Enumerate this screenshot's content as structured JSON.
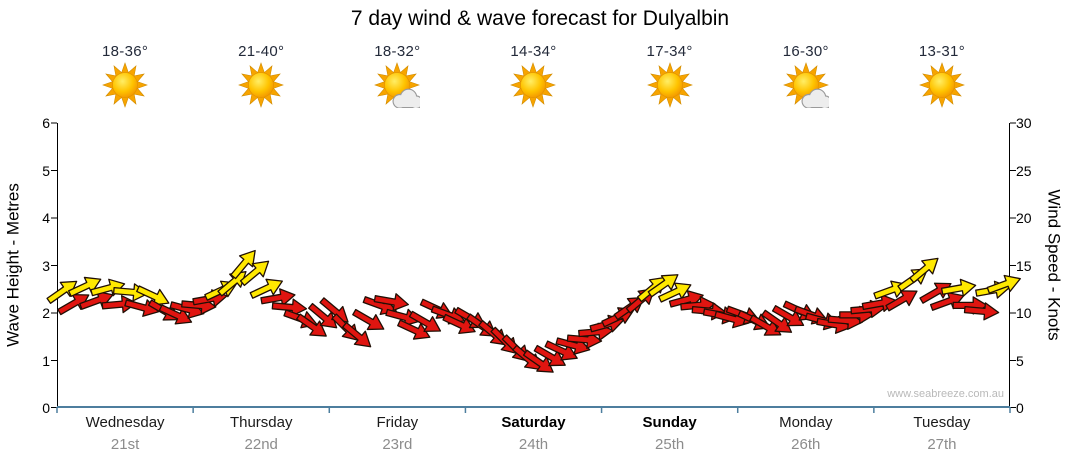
{
  "title": "7 day wind & wave forecast for Dulyalbin",
  "watermark": "www.seabreeze.com.au",
  "colors": {
    "arrow_red": "#e01510",
    "arrow_yellow": "#ffe800",
    "arrow_outline": "#200f05",
    "axis_line": "#000000",
    "baseline": "#4d7e9e",
    "temp_text": "#232a3a",
    "day_text": "#1a1a1a",
    "date_text": "#8c8c8c"
  },
  "forecast": {
    "days": [
      {
        "name": "Wednesday",
        "date": "21st",
        "temps": "18-36°",
        "icon": "sunny",
        "weekend": false
      },
      {
        "name": "Thursday",
        "date": "22nd",
        "temps": "21-40°",
        "icon": "sunny",
        "weekend": false
      },
      {
        "name": "Friday",
        "date": "23rd",
        "temps": "18-32°",
        "icon": "partly-cloudy",
        "weekend": false
      },
      {
        "name": "Saturday",
        "date": "24th",
        "temps": "14-34°",
        "icon": "sunny",
        "weekend": true
      },
      {
        "name": "Sunday",
        "date": "25th",
        "temps": "17-34°",
        "icon": "sunny",
        "weekend": true
      },
      {
        "name": "Monday",
        "date": "26th",
        "temps": "16-30°",
        "icon": "partly-cloudy",
        "weekend": false
      },
      {
        "name": "Tuesday",
        "date": "27th",
        "temps": "13-31°",
        "icon": "sunny",
        "weekend": false
      }
    ]
  },
  "chart_data": {
    "type": "wind-arrow-timeseries",
    "title": "7 day wind & wave forecast for Dulyalbin",
    "categories": [
      "Wednesday 21st",
      "Thursday 22nd",
      "Friday 23rd",
      "Saturday 24th",
      "Sunday 25th",
      "Monday 26th",
      "Tuesday 27th"
    ],
    "left_axis": {
      "label": "Wave Height - Metres",
      "min": 0,
      "max": 6,
      "ticks": [
        0,
        1,
        2,
        3,
        4,
        5,
        6
      ]
    },
    "right_axis": {
      "label": "Wind Speed - Knots",
      "min": 0,
      "max": 30,
      "ticks": [
        0,
        5,
        10,
        15,
        20,
        25,
        30
      ]
    },
    "grid": false,
    "arrow_format": [
      "day_offset",
      "knots",
      "direction_deg",
      "color(y=yellow,r=red)"
    ],
    "arrows": [
      [
        0.042,
        12.3,
        -35,
        "y"
      ],
      [
        0.125,
        11.0,
        -30,
        "r"
      ],
      [
        0.208,
        12.8,
        -25,
        "y"
      ],
      [
        0.292,
        11.3,
        -20,
        "r"
      ],
      [
        0.375,
        12.6,
        -15,
        "y"
      ],
      [
        0.458,
        10.9,
        -5,
        "r"
      ],
      [
        0.542,
        12.2,
        5,
        "y"
      ],
      [
        0.625,
        10.6,
        15,
        "r"
      ],
      [
        0.708,
        11.8,
        25,
        "y"
      ],
      [
        0.792,
        10.2,
        30,
        "r"
      ],
      [
        0.875,
        9.8,
        25,
        "r"
      ],
      [
        0.958,
        10.4,
        15,
        "r"
      ],
      [
        1.042,
        10.8,
        5,
        "r"
      ],
      [
        1.125,
        11.5,
        -10,
        "r"
      ],
      [
        1.208,
        12.4,
        -25,
        "y"
      ],
      [
        1.292,
        13.2,
        -40,
        "y"
      ],
      [
        1.375,
        15.2,
        -50,
        "y"
      ],
      [
        1.458,
        14.3,
        -40,
        "y"
      ],
      [
        1.542,
        12.6,
        -25,
        "y"
      ],
      [
        1.625,
        11.6,
        -10,
        "r"
      ],
      [
        1.708,
        10.6,
        5,
        "r"
      ],
      [
        1.792,
        9.4,
        20,
        "r"
      ],
      [
        1.875,
        8.6,
        35,
        "r"
      ],
      [
        1.958,
        9.6,
        40,
        "r"
      ],
      [
        2.042,
        10.2,
        40,
        "r"
      ],
      [
        2.125,
        8.4,
        45,
        "r"
      ],
      [
        2.208,
        7.6,
        40,
        "r"
      ],
      [
        2.292,
        9.2,
        30,
        "r"
      ],
      [
        2.375,
        10.8,
        20,
        "r"
      ],
      [
        2.458,
        11.2,
        10,
        "r"
      ],
      [
        2.542,
        9.6,
        15,
        "r"
      ],
      [
        2.625,
        8.2,
        25,
        "r"
      ],
      [
        2.708,
        9.0,
        30,
        "r"
      ],
      [
        2.792,
        10.4,
        25,
        "r"
      ],
      [
        2.875,
        9.8,
        20,
        "r"
      ],
      [
        2.958,
        8.8,
        25,
        "r"
      ],
      [
        3.042,
        9.4,
        30,
        "r"
      ],
      [
        3.125,
        8.6,
        35,
        "r"
      ],
      [
        3.208,
        7.8,
        40,
        "r"
      ],
      [
        3.292,
        7.0,
        45,
        "r"
      ],
      [
        3.375,
        6.2,
        45,
        "r"
      ],
      [
        3.458,
        5.2,
        40,
        "r"
      ],
      [
        3.542,
        4.8,
        35,
        "r"
      ],
      [
        3.625,
        5.4,
        30,
        "r"
      ],
      [
        3.708,
        6.0,
        25,
        "r"
      ],
      [
        3.792,
        6.6,
        15,
        "r"
      ],
      [
        3.875,
        7.2,
        5,
        "r"
      ],
      [
        3.958,
        8.0,
        -5,
        "r"
      ],
      [
        4.042,
        8.8,
        -15,
        "r"
      ],
      [
        4.125,
        9.6,
        -25,
        "r"
      ],
      [
        4.208,
        10.6,
        -35,
        "r"
      ],
      [
        4.292,
        11.4,
        -40,
        "r"
      ],
      [
        4.375,
        12.6,
        -40,
        "y"
      ],
      [
        4.458,
        13.0,
        -35,
        "y"
      ],
      [
        4.542,
        12.2,
        -25,
        "y"
      ],
      [
        4.625,
        11.4,
        -15,
        "r"
      ],
      [
        4.708,
        10.8,
        -5,
        "r"
      ],
      [
        4.792,
        10.2,
        5,
        "r"
      ],
      [
        4.875,
        9.8,
        10,
        "r"
      ],
      [
        4.958,
        9.4,
        15,
        "r"
      ],
      [
        5.042,
        9.8,
        20,
        "r"
      ],
      [
        5.125,
        9.2,
        25,
        "r"
      ],
      [
        5.208,
        8.6,
        30,
        "r"
      ],
      [
        5.292,
        9.0,
        35,
        "r"
      ],
      [
        5.375,
        9.6,
        30,
        "r"
      ],
      [
        5.458,
        10.2,
        25,
        "r"
      ],
      [
        5.542,
        9.8,
        20,
        "r"
      ],
      [
        5.625,
        9.2,
        15,
        "r"
      ],
      [
        5.708,
        8.8,
        10,
        "r"
      ],
      [
        5.792,
        9.2,
        5,
        "r"
      ],
      [
        5.875,
        9.8,
        0,
        "r"
      ],
      [
        5.958,
        10.4,
        -5,
        "r"
      ],
      [
        6.042,
        11.0,
        -10,
        "r"
      ],
      [
        6.125,
        12.4,
        -20,
        "y"
      ],
      [
        6.208,
        11.4,
        -30,
        "r"
      ],
      [
        6.292,
        13.6,
        -35,
        "y"
      ],
      [
        6.375,
        14.6,
        -40,
        "y"
      ],
      [
        6.458,
        12.2,
        -30,
        "r"
      ],
      [
        6.542,
        11.2,
        -20,
        "r"
      ],
      [
        6.625,
        12.6,
        -10,
        "y"
      ],
      [
        6.708,
        10.8,
        0,
        "r"
      ],
      [
        6.792,
        10.2,
        5,
        "r"
      ],
      [
        6.875,
        12.4,
        -10,
        "y"
      ],
      [
        6.958,
        13.0,
        -20,
        "y"
      ]
    ]
  }
}
